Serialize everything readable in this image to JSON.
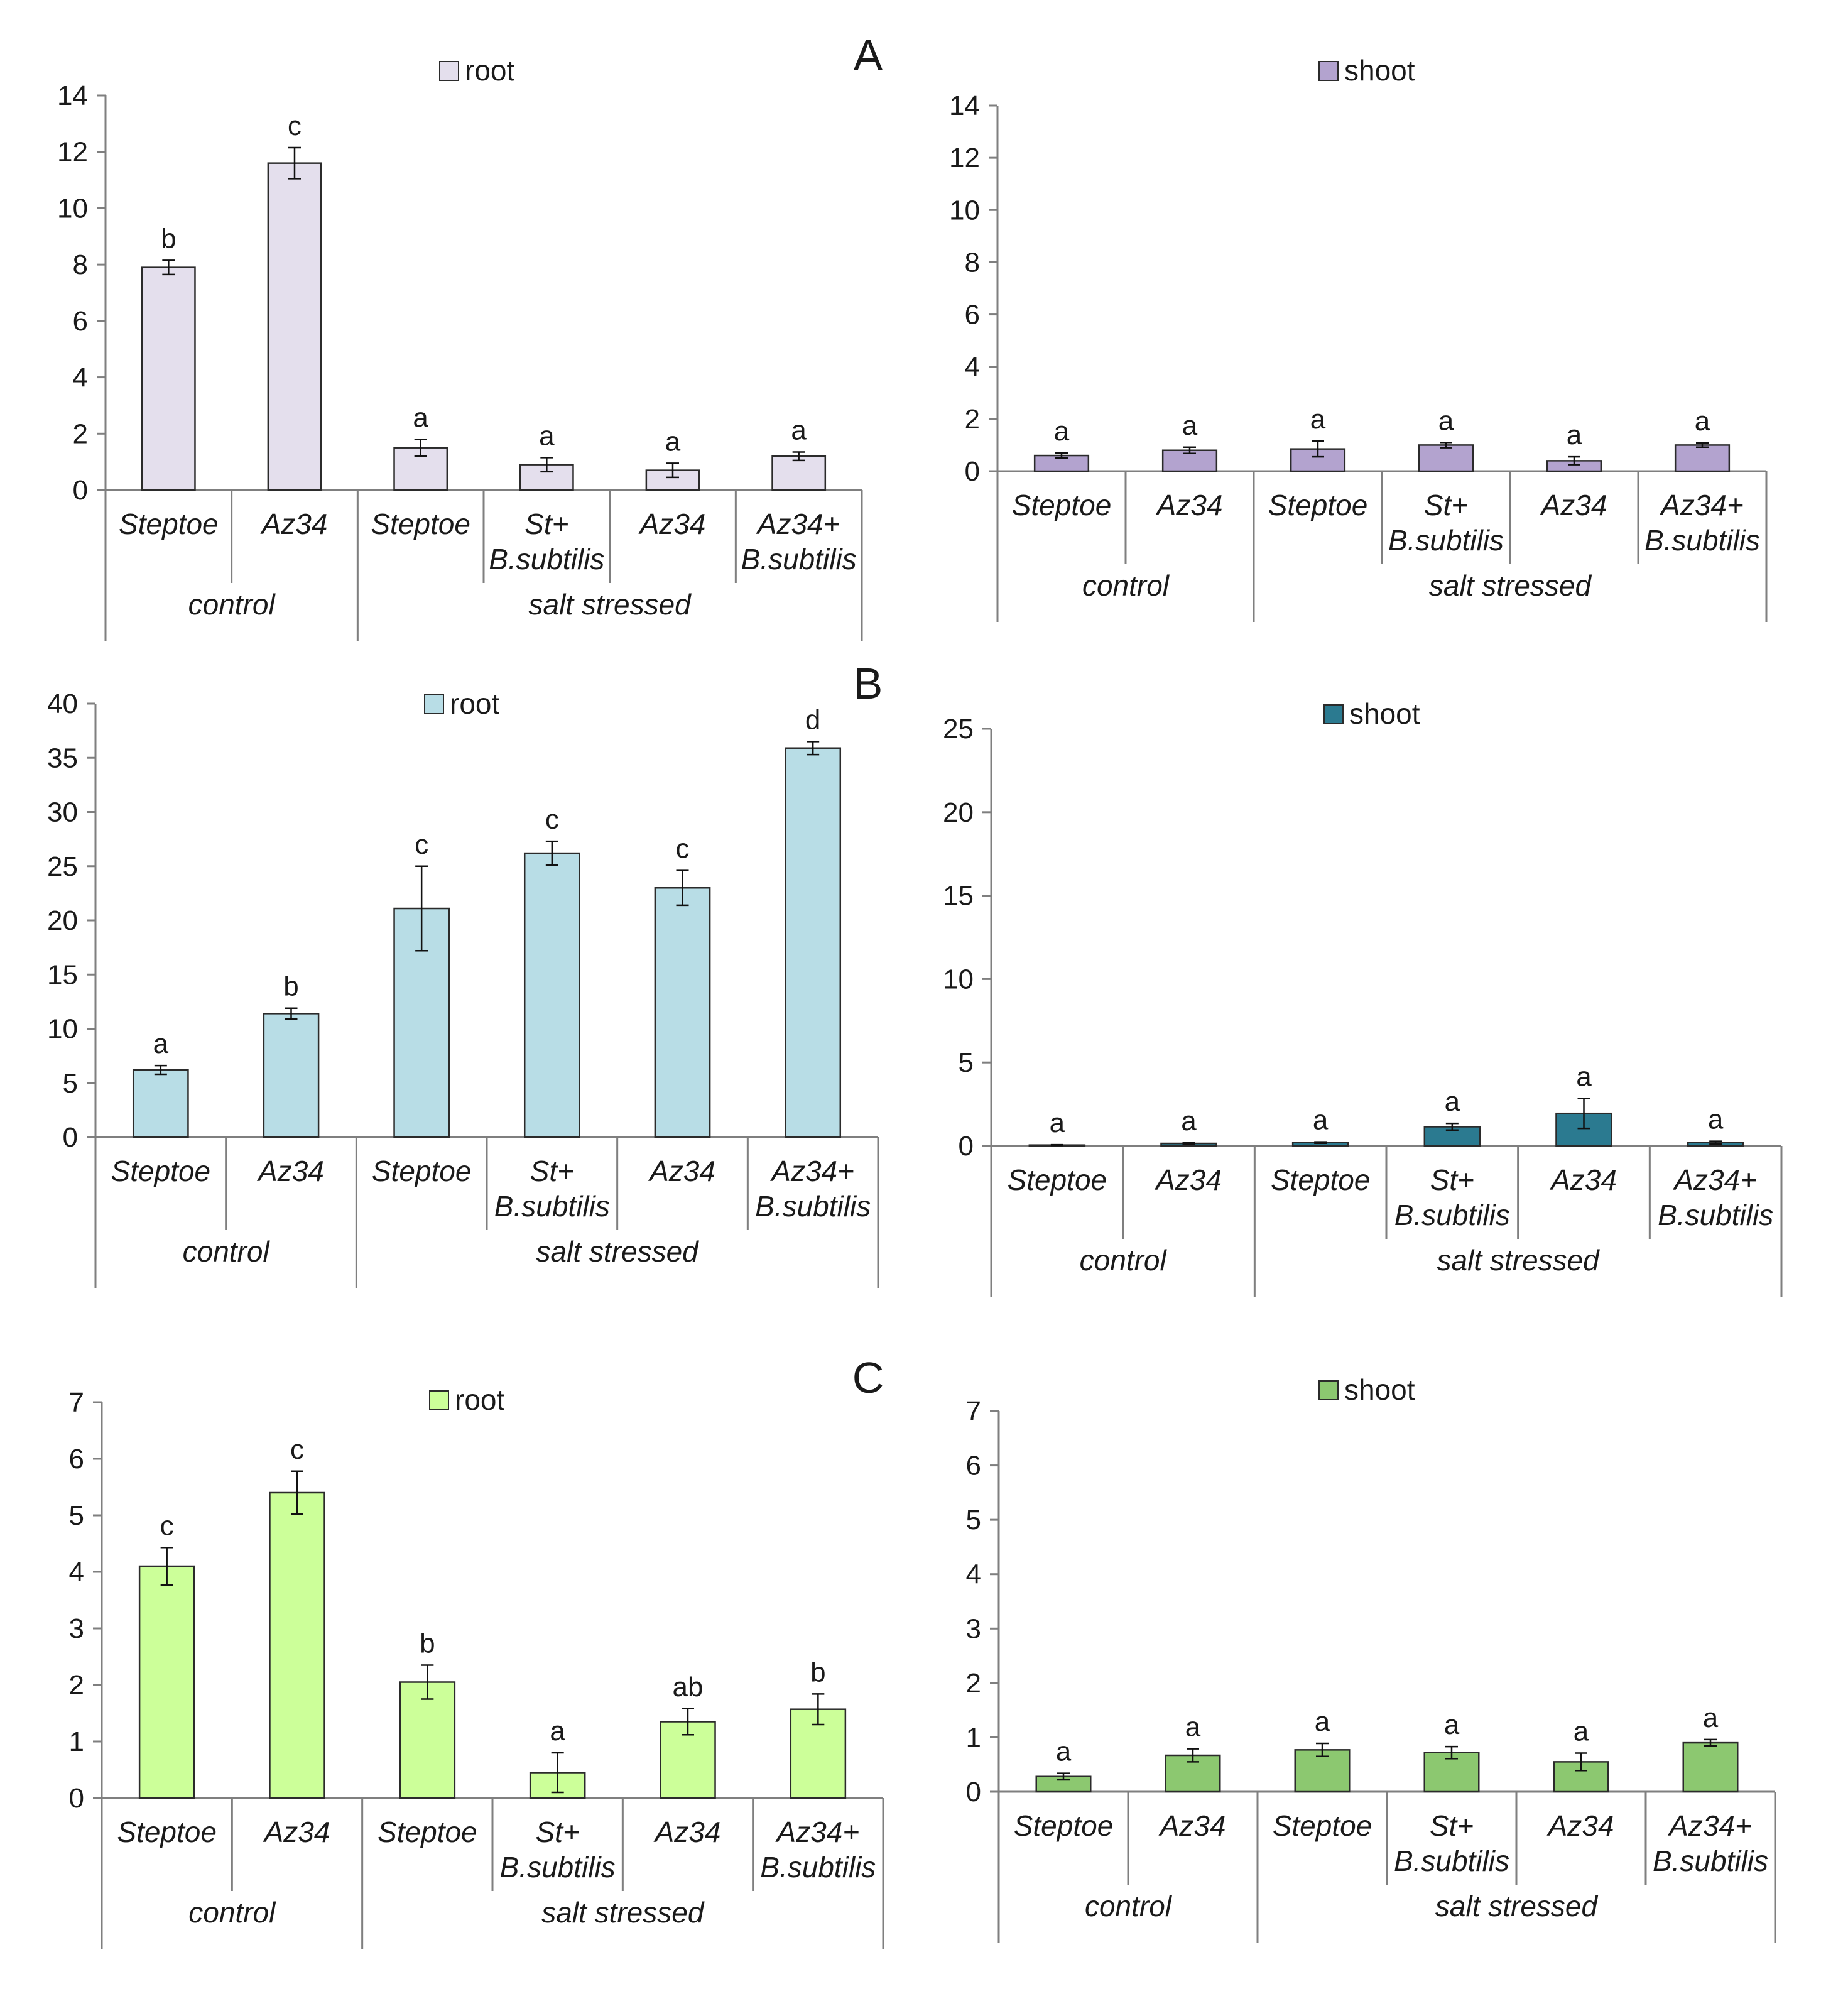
{
  "panel_letters": [
    "A",
    "B",
    "C"
  ],
  "chart_data": [
    {
      "id": "A-root",
      "type": "bar",
      "panel": "A",
      "legend": "root",
      "color": "#e4dfed",
      "ylim": [
        0,
        14
      ],
      "yticks": [
        0,
        2,
        4,
        6,
        8,
        10,
        12,
        14
      ],
      "categories": [
        {
          "lines": [
            "Steptoe"
          ]
        },
        {
          "lines": [
            "Az34"
          ]
        },
        {
          "lines": [
            "Steptoe"
          ]
        },
        {
          "lines": [
            "St+",
            "B.subtilis"
          ]
        },
        {
          "lines": [
            "Az34"
          ]
        },
        {
          "lines": [
            "Az34+",
            "B.subtilis"
          ]
        }
      ],
      "groups": [
        {
          "label": "control",
          "span": 2
        },
        {
          "label": "salt stressed",
          "span": 4
        }
      ],
      "values": [
        7.9,
        11.6,
        1.5,
        0.9,
        0.7,
        1.2
      ],
      "errors": [
        0.25,
        0.55,
        0.3,
        0.25,
        0.25,
        0.15
      ],
      "letters": [
        "b",
        "c",
        "a",
        "a",
        "a",
        "a"
      ]
    },
    {
      "id": "A-shoot",
      "type": "bar",
      "panel": "A",
      "legend": "shoot",
      "color": "#b3a3cf",
      "ylim": [
        0,
        14
      ],
      "yticks": [
        0,
        2,
        4,
        6,
        8,
        10,
        12,
        14
      ],
      "categories": [
        {
          "lines": [
            "Steptoe"
          ]
        },
        {
          "lines": [
            "Az34"
          ]
        },
        {
          "lines": [
            "Steptoe"
          ]
        },
        {
          "lines": [
            "St+",
            "B.subtilis"
          ]
        },
        {
          "lines": [
            "Az34"
          ]
        },
        {
          "lines": [
            "Az34+",
            "B.subtilis"
          ]
        }
      ],
      "groups": [
        {
          "label": "control",
          "span": 2
        },
        {
          "label": "salt stressed",
          "span": 4
        }
      ],
      "values": [
        0.6,
        0.8,
        0.85,
        1.0,
        0.4,
        1.0
      ],
      "errors": [
        0.1,
        0.12,
        0.3,
        0.1,
        0.15,
        0.08
      ],
      "letters": [
        "a",
        "a",
        "a",
        "a",
        "a",
        "a"
      ]
    },
    {
      "id": "B-root",
      "type": "bar",
      "panel": "B",
      "legend": "root",
      "color": "#b8dde6",
      "ylim": [
        0,
        40
      ],
      "yticks": [
        0,
        5,
        10,
        15,
        20,
        25,
        30,
        35,
        40
      ],
      "categories": [
        {
          "lines": [
            "Steptoe"
          ]
        },
        {
          "lines": [
            "Az34"
          ]
        },
        {
          "lines": [
            "Steptoe"
          ]
        },
        {
          "lines": [
            "St+",
            "B.subtilis"
          ]
        },
        {
          "lines": [
            "Az34"
          ]
        },
        {
          "lines": [
            "Az34+",
            "B.subtilis"
          ]
        }
      ],
      "groups": [
        {
          "label": "control",
          "span": 2
        },
        {
          "label": "salt stressed",
          "span": 4
        }
      ],
      "values": [
        6.2,
        11.4,
        21.1,
        26.2,
        23.0,
        35.9
      ],
      "errors": [
        0.4,
        0.5,
        3.9,
        1.1,
        1.6,
        0.6
      ],
      "letters": [
        "a",
        "b",
        "c",
        "c",
        "c",
        "d"
      ]
    },
    {
      "id": "B-shoot",
      "type": "bar",
      "panel": "B",
      "legend": "shoot",
      "color": "#2b7a90",
      "ylim": [
        0,
        25
      ],
      "yticks": [
        0,
        5,
        10,
        15,
        20,
        25
      ],
      "categories": [
        {
          "lines": [
            "Steptoe"
          ]
        },
        {
          "lines": [
            "Az34"
          ]
        },
        {
          "lines": [
            "Steptoe"
          ]
        },
        {
          "lines": [
            "St+",
            "B.subtilis"
          ]
        },
        {
          "lines": [
            "Az34"
          ]
        },
        {
          "lines": [
            "Az34+",
            "B.subtilis"
          ]
        }
      ],
      "groups": [
        {
          "label": "control",
          "span": 2
        },
        {
          "label": "salt stressed",
          "span": 4
        }
      ],
      "values": [
        0.05,
        0.15,
        0.2,
        1.15,
        1.95,
        0.2
      ],
      "errors": [
        0.02,
        0.04,
        0.04,
        0.2,
        0.9,
        0.08
      ],
      "letters": [
        "a",
        "a",
        "a",
        "a",
        "a",
        "a"
      ]
    },
    {
      "id": "C-root",
      "type": "bar",
      "panel": "C",
      "legend": "root",
      "color": "#ccff99",
      "ylim": [
        0,
        7
      ],
      "yticks": [
        0,
        1,
        2,
        3,
        4,
        5,
        6,
        7
      ],
      "categories": [
        {
          "lines": [
            "Steptoe"
          ]
        },
        {
          "lines": [
            "Az34"
          ]
        },
        {
          "lines": [
            "Steptoe"
          ]
        },
        {
          "lines": [
            "St+",
            "B.subtilis"
          ]
        },
        {
          "lines": [
            "Az34"
          ]
        },
        {
          "lines": [
            "Az34+",
            "B.subtilis"
          ]
        }
      ],
      "groups": [
        {
          "label": "control",
          "span": 2
        },
        {
          "label": "salt stressed",
          "span": 4
        }
      ],
      "values": [
        4.1,
        5.4,
        2.05,
        0.45,
        1.35,
        1.57
      ],
      "errors": [
        0.33,
        0.38,
        0.3,
        0.35,
        0.23,
        0.27
      ],
      "letters": [
        "c",
        "c",
        "b",
        "a",
        "ab",
        "b"
      ]
    },
    {
      "id": "C-shoot",
      "type": "bar",
      "panel": "C",
      "legend": "shoot",
      "color": "#8cc870",
      "ylim": [
        0,
        7
      ],
      "yticks": [
        0,
        1,
        2,
        3,
        4,
        5,
        6,
        7
      ],
      "categories": [
        {
          "lines": [
            "Steptoe"
          ]
        },
        {
          "lines": [
            "Az34"
          ]
        },
        {
          "lines": [
            "Steptoe"
          ]
        },
        {
          "lines": [
            "St+",
            "B.subtilis"
          ]
        },
        {
          "lines": [
            "Az34"
          ]
        },
        {
          "lines": [
            "Az34+",
            "B.subtilis"
          ]
        }
      ],
      "groups": [
        {
          "label": "control",
          "span": 2
        },
        {
          "label": "salt stressed",
          "span": 4
        }
      ],
      "values": [
        0.28,
        0.67,
        0.77,
        0.72,
        0.55,
        0.9
      ],
      "errors": [
        0.06,
        0.12,
        0.12,
        0.11,
        0.16,
        0.06
      ],
      "letters": [
        "a",
        "a",
        "a",
        "a",
        "a",
        "a"
      ]
    }
  ]
}
